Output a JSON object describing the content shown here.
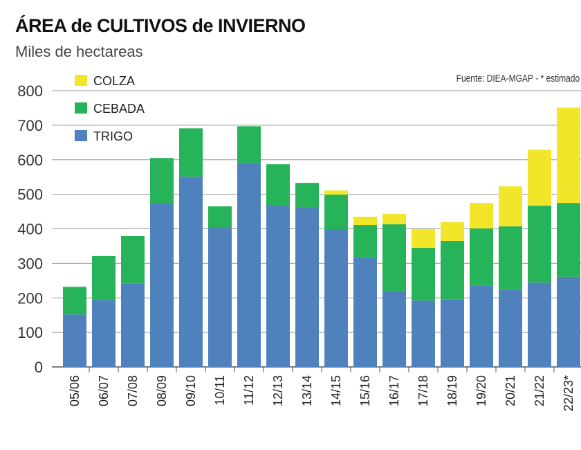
{
  "chart_data": {
    "type": "bar",
    "stacked": true,
    "title": "ÁREA de CULTIVOS de INVIERNO",
    "subtitle": "Miles de hectareas",
    "source": "Fuente: DIEA-MGAP - * estimado",
    "categories": [
      "05/06",
      "06/07",
      "07/08",
      "08/09",
      "09/10",
      "10/11",
      "11/12",
      "12/13",
      "13/14",
      "14/15",
      "15/16",
      "16/17",
      "17/18",
      "18/19",
      "19/20",
      "20/21",
      "21/22",
      "22/23*"
    ],
    "series": [
      {
        "name": "TRIGO",
        "color": "#4f81bd",
        "values": [
          152,
          194,
          242,
          475,
          551,
          403,
          591,
          469,
          461,
          399,
          317,
          220,
          192,
          196,
          236,
          224,
          244,
          261
        ]
      },
      {
        "name": "CEBADA",
        "color": "#27b35a",
        "values": [
          80,
          127,
          137,
          130,
          140,
          62,
          106,
          118,
          72,
          100,
          94,
          193,
          153,
          169,
          165,
          183,
          223,
          214
        ]
      },
      {
        "name": "COLZA",
        "color": "#f2e62a",
        "values": [
          0,
          0,
          0,
          0,
          0,
          0,
          0,
          0,
          0,
          12,
          24,
          30,
          54,
          54,
          74,
          116,
          162,
          276
        ]
      }
    ],
    "ylim": [
      0,
      800
    ],
    "yticks": [
      "0",
      "100",
      "200",
      "300",
      "400",
      "500",
      "600",
      "700",
      "800"
    ],
    "grid": true,
    "legend_placement": "top-left"
  }
}
